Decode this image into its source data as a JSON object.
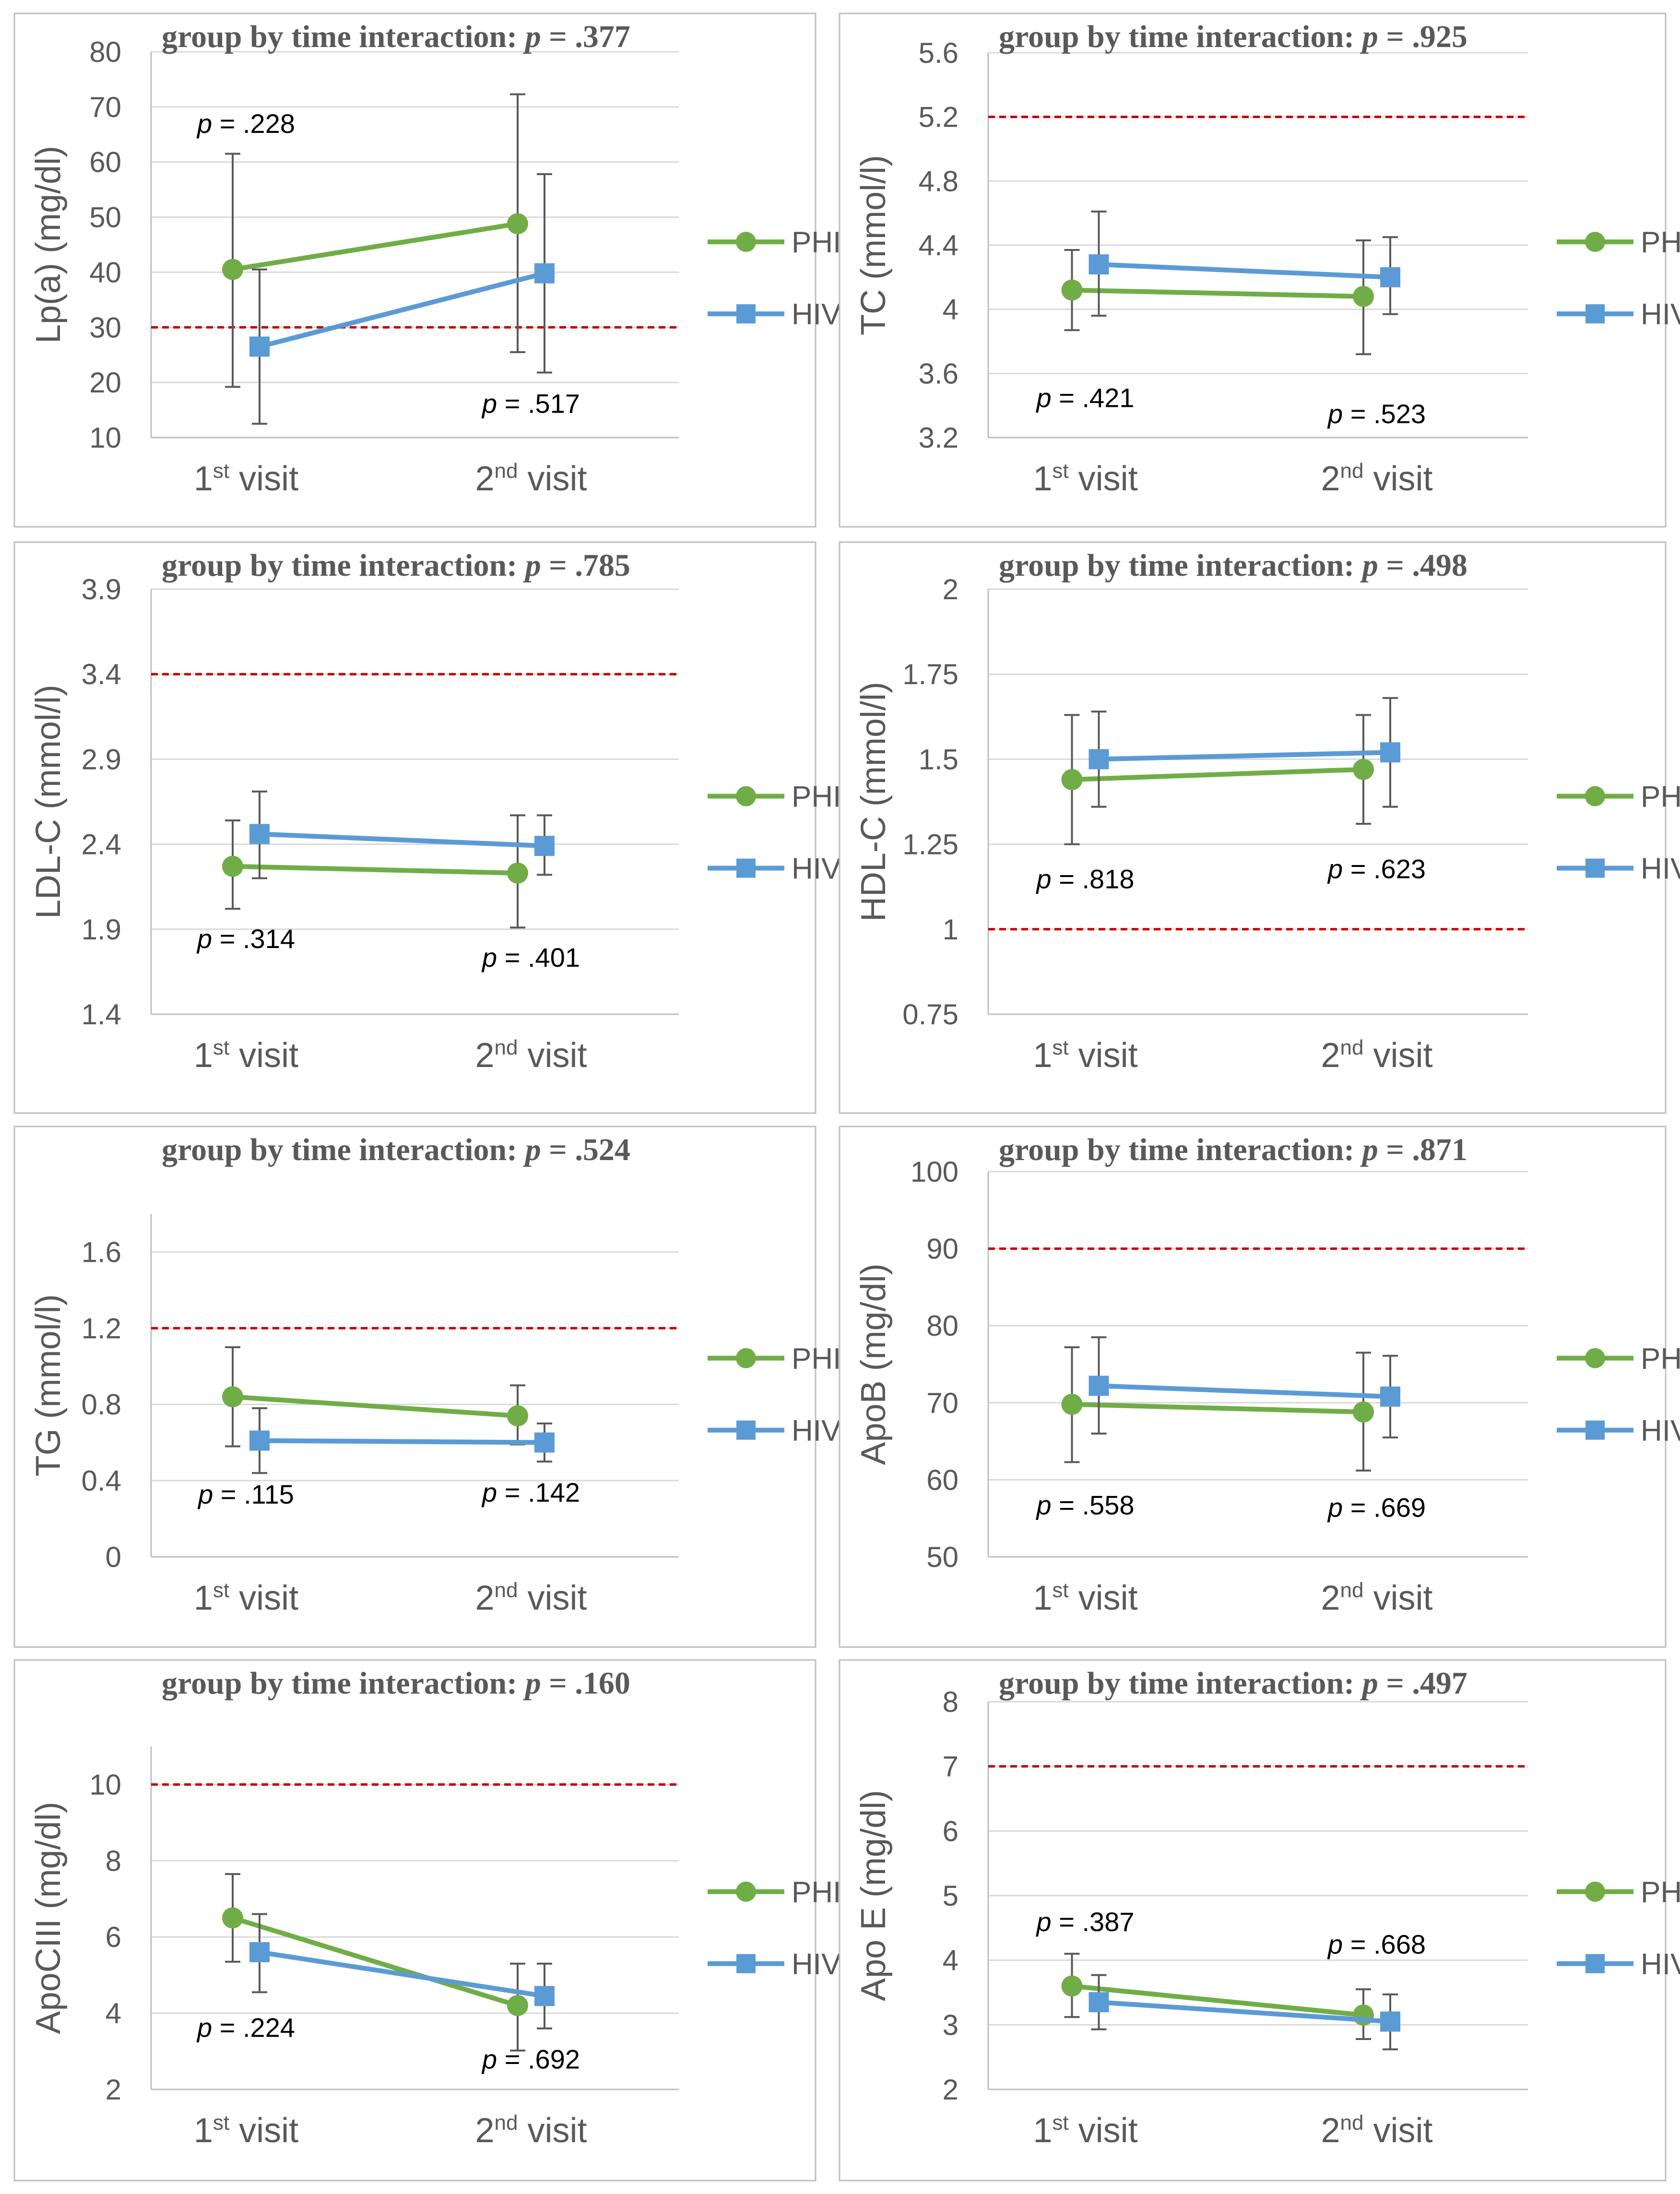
{
  "colors": {
    "phiv": "#70ad47",
    "hiv": "#5b9bd5",
    "reference": "#c00000",
    "error_bar": "#595959",
    "grid": "#d9d9d9",
    "text": "#595959"
  },
  "legend": [
    "PHIV+",
    "HIV-"
  ],
  "chart_data": [
    {
      "type": "line",
      "title": "group by time interaction: p = .377",
      "title_prefix": "group by time interaction: ",
      "title_p": "p",
      "title_value": " = .377",
      "ylabel": "Lp(a) (mg/dl)",
      "categories": [
        {
          "num": "1",
          "sup": "st",
          "rest": " visit"
        },
        {
          "num": "2",
          "sup": "nd",
          "rest": " visit"
        }
      ],
      "ylim": [
        10,
        80
      ],
      "yticks": [
        10,
        20,
        30,
        40,
        50,
        60,
        70,
        80
      ],
      "ytick_labels": [
        "10",
        "20",
        "30",
        "40",
        "50",
        "60",
        "70",
        "80"
      ],
      "reference_line": 30,
      "series": [
        {
          "name": "PHIV+",
          "values": [
            40.5,
            48.8
          ],
          "err_low": [
            19.2,
            25.5
          ],
          "err_high": [
            61.5,
            72.3
          ]
        },
        {
          "name": "HIV-",
          "values": [
            26.5,
            39.8
          ],
          "err_low": [
            12.5,
            21.8
          ],
          "err_high": [
            40.5,
            57.8
          ]
        }
      ],
      "pvalues": [
        {
          "p": "p",
          "value": " = .228",
          "cat": 0,
          "y": 65.3
        },
        {
          "p": "p",
          "value": " = .517",
          "cat": 1,
          "y": 14.5
        }
      ]
    },
    {
      "type": "line",
      "title": "group by time interaction: p = .925",
      "title_prefix": "group by time interaction: ",
      "title_p": "p",
      "title_value": " = .925",
      "ylabel": "TC (mmol/l)",
      "categories": [
        {
          "num": "1",
          "sup": "st",
          "rest": " visit"
        },
        {
          "num": "2",
          "sup": "nd",
          "rest": " visit"
        }
      ],
      "ylim": [
        3.2,
        5.6
      ],
      "yticks": [
        3.2,
        3.6,
        4.0,
        4.4,
        4.8,
        5.2,
        5.6
      ],
      "ytick_labels": [
        "3.2",
        "3.6",
        "4",
        "4.4",
        "4.8",
        "5.2",
        "5.6"
      ],
      "reference_line": 5.2,
      "series": [
        {
          "name": "PHIV+",
          "values": [
            4.12,
            4.08
          ],
          "err_low": [
            3.87,
            3.72
          ],
          "err_high": [
            4.37,
            4.43
          ]
        },
        {
          "name": "HIV-",
          "values": [
            4.28,
            4.2
          ],
          "err_low": [
            3.96,
            3.97
          ],
          "err_high": [
            4.61,
            4.45
          ]
        }
      ],
      "pvalues": [
        {
          "p": "p",
          "value": " = .421",
          "cat": 0,
          "y": 3.39
        },
        {
          "p": "p",
          "value": " = .523",
          "cat": 1,
          "y": 3.29
        }
      ]
    },
    {
      "type": "line",
      "title": "group by time interaction: p = .785",
      "title_prefix": "group by time interaction: ",
      "title_p": "p",
      "title_value": " = .785",
      "ylabel": "LDL-C (mmol/l)",
      "categories": [
        {
          "num": "1",
          "sup": "st",
          "rest": " visit"
        },
        {
          "num": "2",
          "sup": "nd",
          "rest": " visit"
        }
      ],
      "ylim": [
        1.4,
        3.9
      ],
      "yticks": [
        1.4,
        1.9,
        2.4,
        2.9,
        3.4,
        3.9
      ],
      "ytick_labels": [
        "1.4",
        "1.9",
        "2.4",
        "2.9",
        "3.4",
        "3.9"
      ],
      "reference_line": 3.4,
      "series": [
        {
          "name": "PHIV+",
          "values": [
            2.27,
            2.23
          ],
          "err_low": [
            2.02,
            1.91
          ],
          "err_high": [
            2.54,
            2.57
          ]
        },
        {
          "name": "HIV-",
          "values": [
            2.46,
            2.39
          ],
          "err_low": [
            2.2,
            2.22
          ],
          "err_high": [
            2.71,
            2.57
          ]
        }
      ],
      "pvalues": [
        {
          "p": "p",
          "value": " = .314",
          "cat": 0,
          "y": 1.79
        },
        {
          "p": "p",
          "value": " = .401",
          "cat": 1,
          "y": 1.68
        }
      ]
    },
    {
      "type": "line",
      "title": "group by time interaction: p = .498",
      "title_prefix": "group by time interaction: ",
      "title_p": "p",
      "title_value": " = .498",
      "ylabel": "HDL-C (mmol/l)",
      "categories": [
        {
          "num": "1",
          "sup": "st",
          "rest": " visit"
        },
        {
          "num": "2",
          "sup": "nd",
          "rest": " visit"
        }
      ],
      "ylim": [
        0.75,
        2.0
      ],
      "yticks": [
        0.75,
        1.0,
        1.25,
        1.5,
        1.75,
        2.0
      ],
      "ytick_labels": [
        "0.75",
        "1",
        "1.25",
        "1.5",
        "1.75",
        "2"
      ],
      "reference_line": 1.0,
      "series": [
        {
          "name": "PHIV+",
          "values": [
            1.44,
            1.47
          ],
          "err_low": [
            1.25,
            1.31
          ],
          "err_high": [
            1.63,
            1.63
          ]
        },
        {
          "name": "HIV-",
          "values": [
            1.5,
            1.52
          ],
          "err_low": [
            1.36,
            1.36
          ],
          "err_high": [
            1.64,
            1.68
          ]
        }
      ],
      "pvalues": [
        {
          "p": "p",
          "value": " = .818",
          "cat": 0,
          "y": 1.12
        },
        {
          "p": "p",
          "value": " = .623",
          "cat": 1,
          "y": 1.15
        }
      ]
    },
    {
      "type": "line",
      "title": "group by time interaction: p = .524",
      "title_prefix": "group by time interaction: ",
      "title_p": "p",
      "title_value": " = .524",
      "ylabel": "TG (mmol/l)",
      "categories": [
        {
          "num": "1",
          "sup": "st",
          "rest": " visit"
        },
        {
          "num": "2",
          "sup": "nd",
          "rest": " visit"
        }
      ],
      "ylim": [
        0,
        1.8
      ],
      "yticks": [
        0,
        0.4,
        0.8,
        1.2,
        1.6
      ],
      "ytick_labels": [
        "0",
        "0.4",
        "0.8",
        "1.2",
        "1.6"
      ],
      "reference_line": 1.2,
      "series": [
        {
          "name": "PHIV+",
          "values": [
            0.84,
            0.74
          ],
          "err_low": [
            0.58,
            0.59
          ],
          "err_high": [
            1.1,
            0.9
          ]
        },
        {
          "name": "HIV-",
          "values": [
            0.61,
            0.6
          ],
          "err_low": [
            0.44,
            0.5
          ],
          "err_high": [
            0.78,
            0.7
          ]
        }
      ],
      "pvalues": [
        {
          "p": "p",
          "value": " = .115",
          "cat": 0,
          "y": 0.28
        },
        {
          "p": "p",
          "value": " = .142",
          "cat": 1,
          "y": 0.29
        }
      ]
    },
    {
      "type": "line",
      "title": "group by time interaction: p = .871",
      "title_prefix": "group by time interaction: ",
      "title_p": "p",
      "title_value": " = .871",
      "ylabel": "ApoB (mg/dl)",
      "categories": [
        {
          "num": "1",
          "sup": "st",
          "rest": " visit"
        },
        {
          "num": "2",
          "sup": "nd",
          "rest": " visit"
        }
      ],
      "ylim": [
        50,
        100
      ],
      "yticks": [
        50,
        60,
        70,
        80,
        90,
        100
      ],
      "ytick_labels": [
        "50",
        "60",
        "70",
        "80",
        "90",
        "100"
      ],
      "reference_line": 90,
      "series": [
        {
          "name": "PHIV+",
          "values": [
            69.8,
            68.8
          ],
          "err_low": [
            62.3,
            61.2
          ],
          "err_high": [
            77.2,
            76.5
          ]
        },
        {
          "name": "HIV-",
          "values": [
            72.2,
            70.8
          ],
          "err_low": [
            66.0,
            65.5
          ],
          "err_high": [
            78.5,
            76.1
          ]
        }
      ],
      "pvalues": [
        {
          "p": "p",
          "value": " = .558",
          "cat": 0,
          "y": 55.5
        },
        {
          "p": "p",
          "value": " = .669",
          "cat": 1,
          "y": 55.2
        }
      ]
    },
    {
      "type": "line",
      "title": "group by time interaction: p = .160",
      "title_prefix": "group by time interaction: ",
      "title_p": "p",
      "title_value": " = .160",
      "ylabel": "ApoCIII (mg/dl)",
      "categories": [
        {
          "num": "1",
          "sup": "st",
          "rest": " visit"
        },
        {
          "num": "2",
          "sup": "nd",
          "rest": " visit"
        }
      ],
      "ylim": [
        2,
        11
      ],
      "yticks": [
        2,
        4,
        6,
        8,
        10
      ],
      "ytick_labels": [
        "2",
        "4",
        "6",
        "8",
        "10"
      ],
      "reference_line": 10,
      "series": [
        {
          "name": "PHIV+",
          "values": [
            6.5,
            4.2
          ],
          "err_low": [
            5.35,
            3.02
          ],
          "err_high": [
            7.65,
            5.3
          ]
        },
        {
          "name": "HIV-",
          "values": [
            5.6,
            4.45
          ],
          "err_low": [
            4.55,
            3.6
          ],
          "err_high": [
            6.6,
            5.3
          ]
        }
      ],
      "pvalues": [
        {
          "p": "p",
          "value": " = .224",
          "cat": 0,
          "y": 3.38
        },
        {
          "p": "p",
          "value": " = .692",
          "cat": 1,
          "y": 2.55
        }
      ]
    },
    {
      "type": "line",
      "title": "group by time interaction: p = .497",
      "title_prefix": "group by time interaction: ",
      "title_p": "p",
      "title_value": " = .497",
      "ylabel": "Apo E (mg/dl)",
      "categories": [
        {
          "num": "1",
          "sup": "st",
          "rest": " visit"
        },
        {
          "num": "2",
          "sup": "nd",
          "rest": " visit"
        }
      ],
      "ylim": [
        2,
        8
      ],
      "yticks": [
        2,
        3,
        4,
        5,
        6,
        7,
        8
      ],
      "ytick_labels": [
        "2",
        "3",
        "4",
        "5",
        "6",
        "7",
        "8"
      ],
      "reference_line": 7,
      "series": [
        {
          "name": "PHIV+",
          "values": [
            3.6,
            3.15
          ],
          "err_low": [
            3.12,
            2.78
          ],
          "err_high": [
            4.1,
            3.55
          ]
        },
        {
          "name": "HIV-",
          "values": [
            3.35,
            3.05
          ],
          "err_low": [
            2.93,
            2.62
          ],
          "err_high": [
            3.77,
            3.47
          ]
        }
      ],
      "pvalues": [
        {
          "p": "p",
          "value": " = .387",
          "cat": 0,
          "y": 4.45
        },
        {
          "p": "p",
          "value": " = .668",
          "cat": 1,
          "y": 4.1
        }
      ]
    }
  ]
}
